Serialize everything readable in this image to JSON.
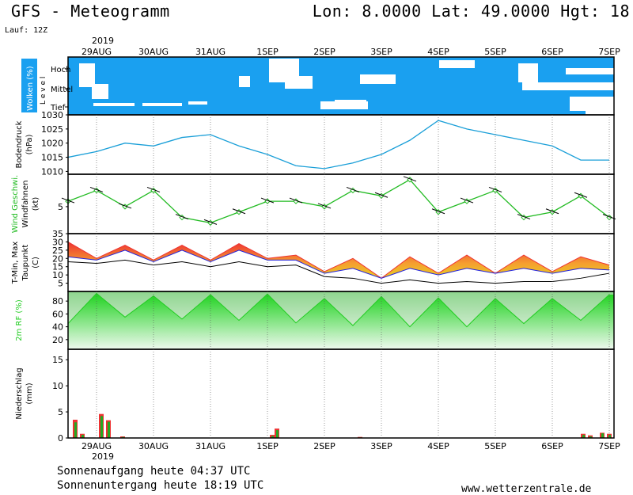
{
  "header": {
    "title": "GFS - Meteogramm",
    "coords": "Lon: 8.0000  Lat: 49.0000  Hgt: 18",
    "run": "Lauf: 12Z"
  },
  "footer": {
    "sunrise": "Sonnenaufgang heute 04:37 UTC",
    "sunset": "Sonnenuntergang heute 18:19 UTC",
    "website": "www.wetterzentrale.de"
  },
  "time_axis": {
    "year": "2019",
    "labels": [
      "29AUG",
      "30AUG",
      "31AUG",
      "1SEP",
      "2SEP",
      "3SEP",
      "4SEP",
      "5SEP",
      "6SEP",
      "7SEP"
    ]
  },
  "colors": {
    "cloud": "#1aa0f0",
    "pressure": "#1a9fd8",
    "wind": "#22bb22",
    "tmin": "#2222dd",
    "tmax": "#ee3333",
    "humidity": "#22cc22",
    "precip_red": "#ee3333",
    "precip_green": "#22aa22"
  },
  "chart_data": [
    {
      "type": "area",
      "title": "",
      "ylabel_parts": [
        "Wolken",
        "(%)"
      ],
      "level_label": "L e v e l",
      "levels": [
        "Hoch",
        "Mittel",
        "Tief"
      ],
      "categories": [
        "Hoch",
        "Mittel",
        "Tief"
      ]
    },
    {
      "type": "line",
      "ylabel": [
        "Bodendruck",
        "(hPa)"
      ],
      "ylim": [
        1009,
        1030
      ],
      "ticks": [
        1010,
        1015,
        1020,
        1025,
        1030
      ],
      "x": [
        0,
        12,
        24,
        36,
        48,
        60,
        72,
        84,
        96,
        108,
        120,
        132,
        144,
        156,
        168,
        180,
        192,
        204,
        216,
        228
      ],
      "series": [
        {
          "values": [
            1015,
            1017,
            1020,
            1019,
            1022,
            1023,
            1019,
            1016,
            1012,
            1011,
            1013,
            1016,
            1021,
            1028,
            1025,
            1023,
            1021,
            1019,
            1014,
            1014
          ]
        }
      ]
    },
    {
      "type": "line",
      "ylabel": [
        "Wind Geschwi.",
        "Windfahnen",
        "(kt)"
      ],
      "ylim": [
        0,
        11
      ],
      "ticks": [
        5
      ],
      "x": [
        0,
        12,
        24,
        36,
        48,
        60,
        72,
        84,
        96,
        108,
        120,
        132,
        144,
        156,
        168,
        180,
        192,
        204,
        216,
        228
      ],
      "series": [
        {
          "values": [
            6,
            8,
            5,
            8,
            3,
            2,
            4,
            6,
            6,
            5,
            8,
            7,
            10,
            4,
            6,
            8,
            3,
            4,
            7,
            3
          ]
        }
      ]
    },
    {
      "type": "area",
      "ylabel": [
        "T-Min,",
        "Max",
        "Taupunkt",
        "(C)"
      ],
      "ylim": [
        0,
        35
      ],
      "ticks": [
        5,
        10,
        15,
        20,
        25,
        30,
        35
      ],
      "x": [
        0,
        12,
        24,
        36,
        48,
        60,
        72,
        84,
        96,
        108,
        120,
        132,
        144,
        156,
        168,
        180,
        192,
        204,
        216,
        228
      ],
      "series": [
        {
          "name": "T-Max",
          "values": [
            30,
            20,
            28,
            19,
            28,
            19,
            29,
            20,
            22,
            12,
            20,
            8,
            21,
            11,
            22,
            11,
            22,
            12,
            21,
            16
          ]
        },
        {
          "name": "T-Min",
          "values": [
            21,
            19,
            25,
            18,
            25,
            18,
            25,
            19,
            19,
            11,
            14,
            8,
            14,
            10,
            14,
            11,
            14,
            11,
            14,
            13
          ]
        },
        {
          "name": "Taupunkt",
          "values": [
            18,
            17,
            19,
            16,
            18,
            15,
            18,
            15,
            16,
            9,
            8,
            5,
            7,
            5,
            6,
            5,
            6,
            6,
            8,
            11
          ]
        }
      ]
    },
    {
      "type": "area",
      "ylabel": [
        "2m RF",
        "(%)"
      ],
      "ylim": [
        5,
        95
      ],
      "ticks": [
        20,
        40,
        60,
        80
      ],
      "x": [
        0,
        12,
        24,
        36,
        48,
        60,
        72,
        84,
        96,
        108,
        120,
        132,
        144,
        156,
        168,
        180,
        192,
        204,
        216,
        228
      ],
      "series": [
        {
          "values": [
            45,
            92,
            55,
            88,
            52,
            90,
            50,
            91,
            46,
            84,
            42,
            87,
            40,
            85,
            40,
            84,
            45,
            84,
            50,
            90
          ]
        }
      ]
    },
    {
      "type": "bar",
      "ylabel": [
        "Niederschlag",
        "(mm)"
      ],
      "ylim": [
        0,
        17
      ],
      "ticks": [
        0,
        5,
        10,
        15
      ],
      "x": [
        3,
        6,
        14,
        17,
        23,
        86,
        88,
        123,
        217,
        220,
        225,
        228
      ],
      "series": [
        {
          "values": [
            3.5,
            0.8,
            4.6,
            3.4,
            0.3,
            0.6,
            1.8,
            0.2,
            0.8,
            0.5,
            1.0,
            0.8
          ]
        },
        {
          "values": [
            3.0,
            0.6,
            4.2,
            3.1,
            0.2,
            0.4,
            1.5,
            0.1,
            0.6,
            0.3,
            0.9,
            0.6
          ]
        }
      ]
    }
  ]
}
